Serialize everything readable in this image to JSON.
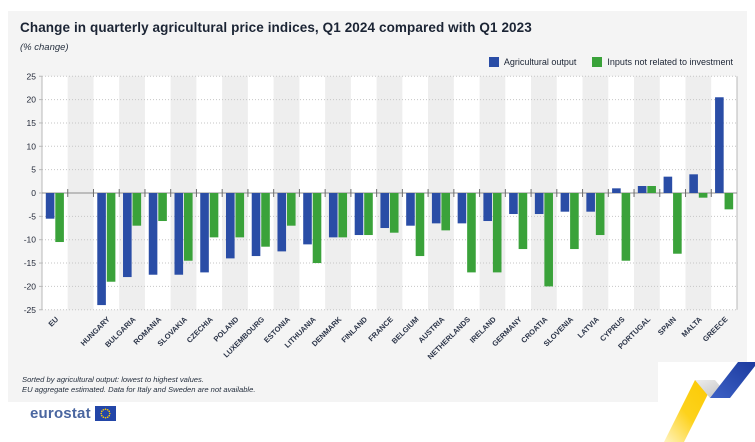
{
  "header": {
    "title": "Change in quarterly agricultural price indices, Q1 2024 compared with Q1 2023",
    "subtitle": "(% change)"
  },
  "legend": [
    {
      "label": "Agricultural output",
      "color": "#2a4da6"
    },
    {
      "label": "Inputs not related to investment",
      "color": "#3aa23a"
    }
  ],
  "chart_data": {
    "type": "bar",
    "title": "Change in quarterly agricultural price indices, Q1 2024 compared with Q1 2023",
    "subtitle": "(% change)",
    "categories": [
      "EU",
      "HUNGARY",
      "BULGARIA",
      "ROMANIA",
      "SLOVAKIA",
      "CZECHIA",
      "POLAND",
      "LUXEMBOURG",
      "ESTONIA",
      "LITHUANIA",
      "DENMARK",
      "FINLAND",
      "FRANCE",
      "BELGIUM",
      "AUSTRIA",
      "NETHERLANDS",
      "IRELAND",
      "GERMANY",
      "CROATIA",
      "SLOVENIA",
      "LATVIA",
      "CYPRUS",
      "PORTUGAL",
      "SPAIN",
      "MALTA",
      "GREECE"
    ],
    "series": [
      {
        "name": "Agricultural output",
        "color": "#2a4da6",
        "values": [
          -5.5,
          -24,
          -18,
          -17.5,
          -17.5,
          -17,
          -14,
          -13.5,
          -12.5,
          -11,
          -9.5,
          -9,
          -7.5,
          -7,
          -6.5,
          -6.5,
          -6,
          -4.5,
          -4.5,
          -4,
          -4,
          1,
          1.5,
          3.5,
          4,
          20.5
        ]
      },
      {
        "name": "Inputs not related to investment",
        "color": "#3aa23a",
        "values": [
          -10.5,
          -19,
          -7,
          -6,
          -14.5,
          -9.5,
          -9.5,
          -11.5,
          -7,
          -15,
          -9.5,
          -9,
          -8.5,
          -13.5,
          -8,
          -17,
          -17,
          -12,
          -20,
          -12,
          -9,
          -14.5,
          1.5,
          -13,
          -1,
          -3.5
        ]
      }
    ],
    "ylim": [
      -25,
      25
    ],
    "ytick_interval": 5,
    "yticks": [
      25,
      20,
      15,
      10,
      5,
      0,
      -5,
      -10,
      -15,
      -20,
      -25
    ],
    "grid": "dotted horizontal gridlines, alternating light column bands",
    "legend_position": "top-right",
    "separator_gap_after": "EU",
    "xlabel": "",
    "ylabel": "% change"
  },
  "footnotes": {
    "line1": "Sorted by agricultural output: lowest to highest values.",
    "line2": "EU aggregate estimated. Data for Italy and Sweden are not available."
  },
  "branding": {
    "logo_text": "eurostat",
    "brand_blue": "#2a4da6",
    "brand_yellow": "#fdc800"
  }
}
